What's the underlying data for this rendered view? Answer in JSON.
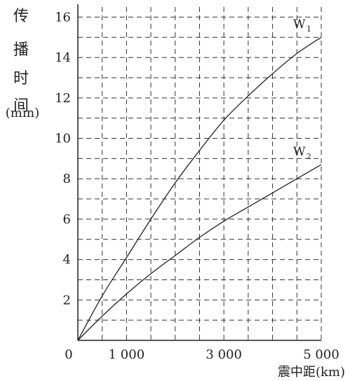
{
  "chart_data": {
    "type": "line",
    "title": "",
    "ylabel_chars": [
      "传",
      "播",
      "时",
      "间"
    ],
    "ylabel_unit": "(min)",
    "xlabel": "震中距(km)",
    "xlim": [
      0,
      5000
    ],
    "ylim": [
      0,
      16.5
    ],
    "x_major_ticks": [
      0,
      1000,
      3000,
      5000
    ],
    "x_tick_labels": [
      "0",
      "1 000",
      "3 000",
      "5 000"
    ],
    "x_grid_step": 500,
    "y_ticks": [
      2,
      4,
      6,
      8,
      10,
      12,
      14,
      16
    ],
    "y_tick_labels": [
      "2",
      "4",
      "6",
      "8",
      "10",
      "12",
      "14",
      "16"
    ],
    "y_grid_step": 1,
    "grid": true,
    "series": [
      {
        "name": "W1",
        "label_main": "W",
        "label_sub": "1",
        "x": [
          0,
          500,
          1000,
          1500,
          2000,
          2500,
          3000,
          3500,
          4000,
          4500,
          5000
        ],
        "y": [
          0,
          2.2,
          4.1,
          6.0,
          7.8,
          9.4,
          10.9,
          12.1,
          13.2,
          14.2,
          15.0
        ]
      },
      {
        "name": "W2",
        "label_main": "W",
        "label_sub": "2",
        "x": [
          0,
          500,
          1000,
          1500,
          2000,
          2500,
          3000,
          3500,
          4000,
          4500,
          5000
        ],
        "y": [
          0,
          1.2,
          2.3,
          3.3,
          4.2,
          5.1,
          5.9,
          6.6,
          7.3,
          8.0,
          8.7
        ]
      }
    ]
  }
}
